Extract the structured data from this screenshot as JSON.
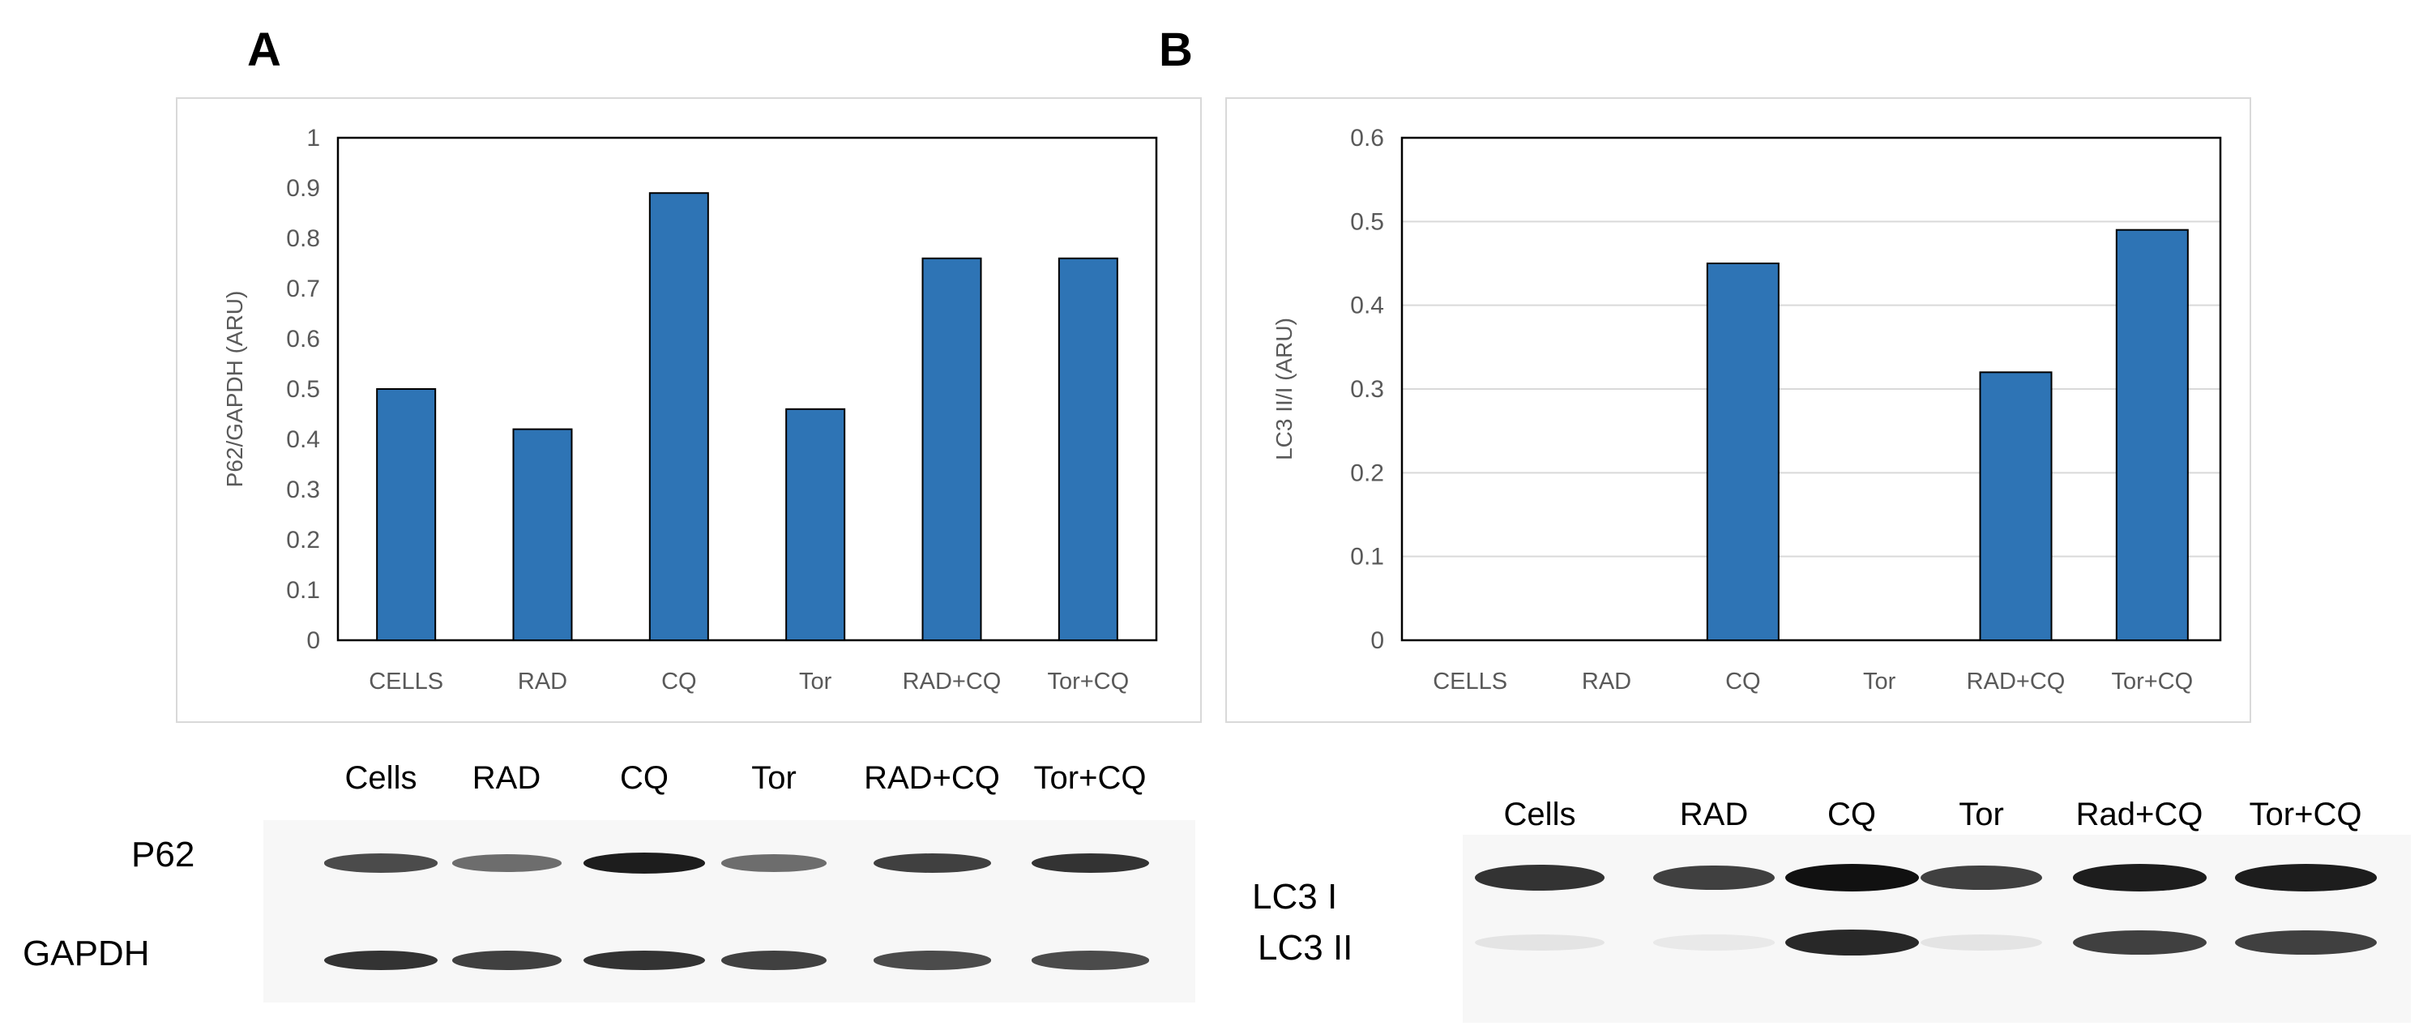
{
  "panels": [
    {
      "letter": "A",
      "blot": {
        "lane_labels": [
          "Cells",
          "RAD",
          "CQ",
          "Tor",
          "RAD+CQ",
          "Tor+CQ"
        ],
        "rows": [
          {
            "label": "P62",
            "intensities": [
              0.75,
              0.6,
              0.95,
              0.6,
              0.8,
              0.85
            ]
          },
          {
            "label": "GAPDH",
            "intensities": [
              0.85,
              0.8,
              0.85,
              0.8,
              0.75,
              0.75
            ]
          }
        ]
      }
    },
    {
      "letter": "B",
      "blot": {
        "lane_labels": [
          "Cells",
          "RAD",
          "CQ",
          "Tor",
          "Rad+CQ",
          "Tor+CQ"
        ],
        "rows": [
          {
            "label": "LC3 I",
            "intensities": [
              0.85,
              0.8,
              1.0,
              0.8,
              0.95,
              0.95
            ]
          },
          {
            "label": "LC3 II",
            "intensities": [
              0.08,
              0.05,
              0.9,
              0.08,
              0.8,
              0.8
            ]
          }
        ]
      }
    }
  ],
  "chart_data": [
    {
      "type": "bar",
      "title": "",
      "categories": [
        "CELLS",
        "RAD",
        "CQ",
        "Tor",
        "RAD+CQ",
        "Tor+CQ"
      ],
      "values": [
        0.5,
        0.42,
        0.89,
        0.46,
        0.76,
        0.76
      ],
      "xlabel": "",
      "ylabel": "P62/GAPDH (ARU)",
      "ylim": [
        0,
        1
      ],
      "yticks": [
        "0",
        "0.1",
        "0.2",
        "0.3",
        "0.4",
        "0.5",
        "0.6",
        "0.7",
        "0.8",
        "0.9",
        "1"
      ],
      "grid": false,
      "bar_color": "#2e74b5"
    },
    {
      "type": "bar",
      "title": "",
      "categories": [
        "CELLS",
        "RAD",
        "CQ",
        "Tor",
        "RAD+CQ",
        "Tor+CQ"
      ],
      "values": [
        0,
        0,
        0.45,
        0,
        0.32,
        0.49
      ],
      "xlabel": "",
      "ylabel": "LC3 II/I (ARU)",
      "ylim": [
        0,
        0.6
      ],
      "yticks": [
        "0",
        "0.1",
        "0.2",
        "0.3",
        "0.4",
        "0.5",
        "0.6"
      ],
      "grid": true,
      "bar_color": "#2e74b5"
    }
  ]
}
